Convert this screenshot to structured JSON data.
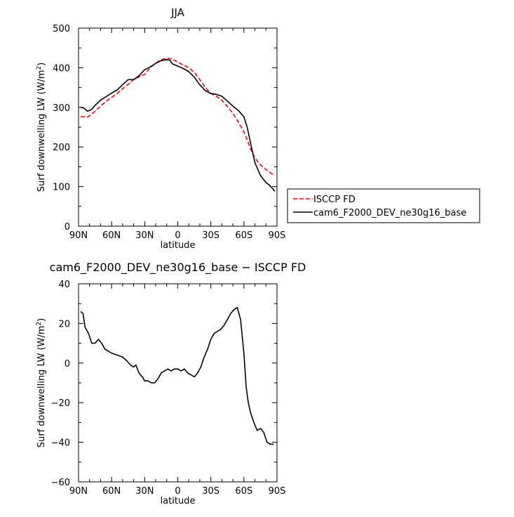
{
  "chart_data": [
    {
      "type": "line",
      "title": "JJA",
      "xlabel": "latitude",
      "ylabel": "Surf downwelling LW (W/m",
      "ylabel_sup": "2",
      "ylabel_close": ")",
      "xlim": [
        90,
        -90
      ],
      "ylim": [
        0,
        500
      ],
      "xticks": [
        90,
        60,
        30,
        0,
        -30,
        -60,
        -90
      ],
      "xtick_labels": [
        "90N",
        "60N",
        "30N",
        "0",
        "30S",
        "60S",
        "90S"
      ],
      "yticks": [
        0,
        100,
        200,
        300,
        400,
        500
      ],
      "ytick_labels": [
        "0",
        "100",
        "200",
        "300",
        "400",
        "500"
      ],
      "legend_position": "right",
      "series": [
        {
          "name": "ISCCP FD",
          "color": "#ff0000",
          "dash": true,
          "x": [
            88,
            85,
            82,
            78,
            75,
            70,
            65,
            60,
            55,
            50,
            45,
            40,
            35,
            30,
            25,
            20,
            15,
            10,
            5,
            0,
            -5,
            -10,
            -15,
            -20,
            -25,
            -30,
            -35,
            -40,
            -45,
            -50,
            -55,
            -60,
            -63,
            -66,
            -70,
            -75,
            -80,
            -85,
            -88
          ],
          "y": [
            276,
            276,
            275,
            283,
            290,
            303,
            315,
            325,
            335,
            347,
            358,
            370,
            377,
            383,
            400,
            412,
            420,
            424,
            422,
            414,
            407,
            400,
            388,
            370,
            350,
            335,
            328,
            318,
            302,
            285,
            263,
            238,
            218,
            195,
            172,
            155,
            143,
            133,
            128
          ]
        },
        {
          "name": "cam6_F2000_DEV_ne30g16_base",
          "color": "#000000",
          "dash": false,
          "x": [
            88,
            85,
            82,
            78,
            75,
            70,
            65,
            60,
            55,
            50,
            45,
            40,
            35,
            30,
            25,
            20,
            15,
            10,
            7,
            5,
            0,
            -5,
            -10,
            -15,
            -20,
            -25,
            -30,
            -35,
            -40,
            -45,
            -50,
            -55,
            -60,
            -63,
            -66,
            -70,
            -75,
            -80,
            -83,
            -86,
            -88
          ],
          "y": [
            300,
            298,
            290,
            295,
            305,
            318,
            327,
            336,
            344,
            357,
            370,
            370,
            380,
            395,
            402,
            411,
            418,
            420,
            419,
            410,
            404,
            398,
            390,
            376,
            357,
            342,
            335,
            333,
            328,
            316,
            303,
            292,
            276,
            250,
            210,
            160,
            128,
            110,
            104,
            95,
            88
          ]
        }
      ]
    },
    {
      "type": "line",
      "title": "cam6_F2000_DEV_ne30g16_base − ISCCP FD",
      "xlabel": "latitude",
      "ylabel": "Surf downwelling LW (W/m",
      "ylabel_sup": "2",
      "ylabel_close": ")",
      "xlim": [
        90,
        -90
      ],
      "ylim": [
        -60,
        40
      ],
      "xticks": [
        90,
        60,
        30,
        0,
        -30,
        -60,
        -90
      ],
      "xtick_labels": [
        "90N",
        "60N",
        "30N",
        "0",
        "30S",
        "60S",
        "90S"
      ],
      "yticks": [
        -60,
        -40,
        -20,
        0,
        20,
        40
      ],
      "ytick_labels": [
        "−60",
        "−40",
        "−20",
        "0",
        "20",
        "40"
      ],
      "series": [
        {
          "name": "",
          "color": "#000000",
          "dash": false,
          "x": [
            88,
            86,
            84,
            81,
            78,
            75,
            72,
            69,
            66,
            63,
            60,
            55,
            50,
            46,
            43,
            40,
            38,
            36,
            34,
            32,
            30,
            27,
            24,
            21,
            18,
            15,
            12,
            9,
            6,
            3,
            0,
            -3,
            -6,
            -9,
            -12,
            -15,
            -18,
            -21,
            -24,
            -27,
            -30,
            -33,
            -36,
            -39,
            -42,
            -45,
            -48,
            -51,
            -54,
            -57,
            -60,
            -62,
            -64,
            -66,
            -69,
            -72,
            -75,
            -78,
            -81,
            -84,
            -87
          ],
          "y": [
            26,
            25,
            18,
            15,
            10,
            10,
            12,
            10,
            7,
            6,
            5,
            4,
            3,
            1,
            -1,
            -2,
            -1,
            -4,
            -6,
            -7,
            -9,
            -9,
            -10,
            -10,
            -8,
            -5,
            -4,
            -3,
            -4,
            -3,
            -3,
            -4,
            -3,
            -5,
            -6,
            -7,
            -5,
            -2,
            3,
            7,
            12,
            15,
            16,
            17,
            19,
            22,
            25,
            27,
            28,
            22,
            5,
            -12,
            -20,
            -25,
            -30,
            -34,
            -33,
            -35,
            -40,
            -41,
            -41
          ]
        }
      ]
    }
  ]
}
